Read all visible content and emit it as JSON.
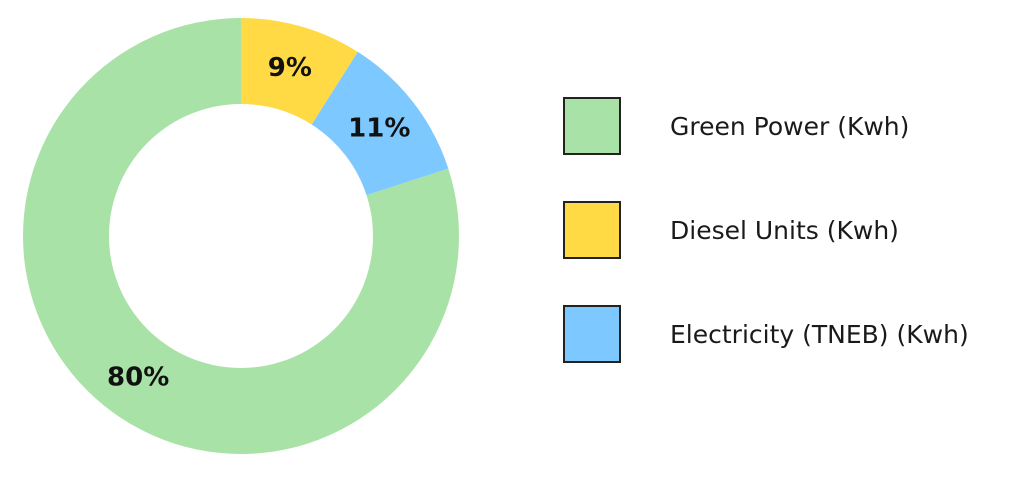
{
  "chart_data": {
    "type": "pie",
    "donut": true,
    "slices": [
      {
        "name": "Diesel Units (Kwh)",
        "value": 9,
        "label": "9%",
        "color": "#FFDA44"
      },
      {
        "name": "Electricity (TNEB) (Kwh)",
        "value": 11,
        "label": "11%",
        "color": "#7CC8FF"
      },
      {
        "name": "Green Power (Kwh)",
        "value": 80,
        "label": "80%",
        "color": "#A8E2A6"
      }
    ],
    "legend": {
      "placement": "right",
      "entries": [
        {
          "label": "Green Power (Kwh)",
          "color": "#A8E2A6"
        },
        {
          "label": "Diesel Units (Kwh)",
          "color": "#FFDA44"
        },
        {
          "label": "Electricity (TNEB) (Kwh)",
          "color": "#7CC8FF"
        }
      ]
    }
  }
}
